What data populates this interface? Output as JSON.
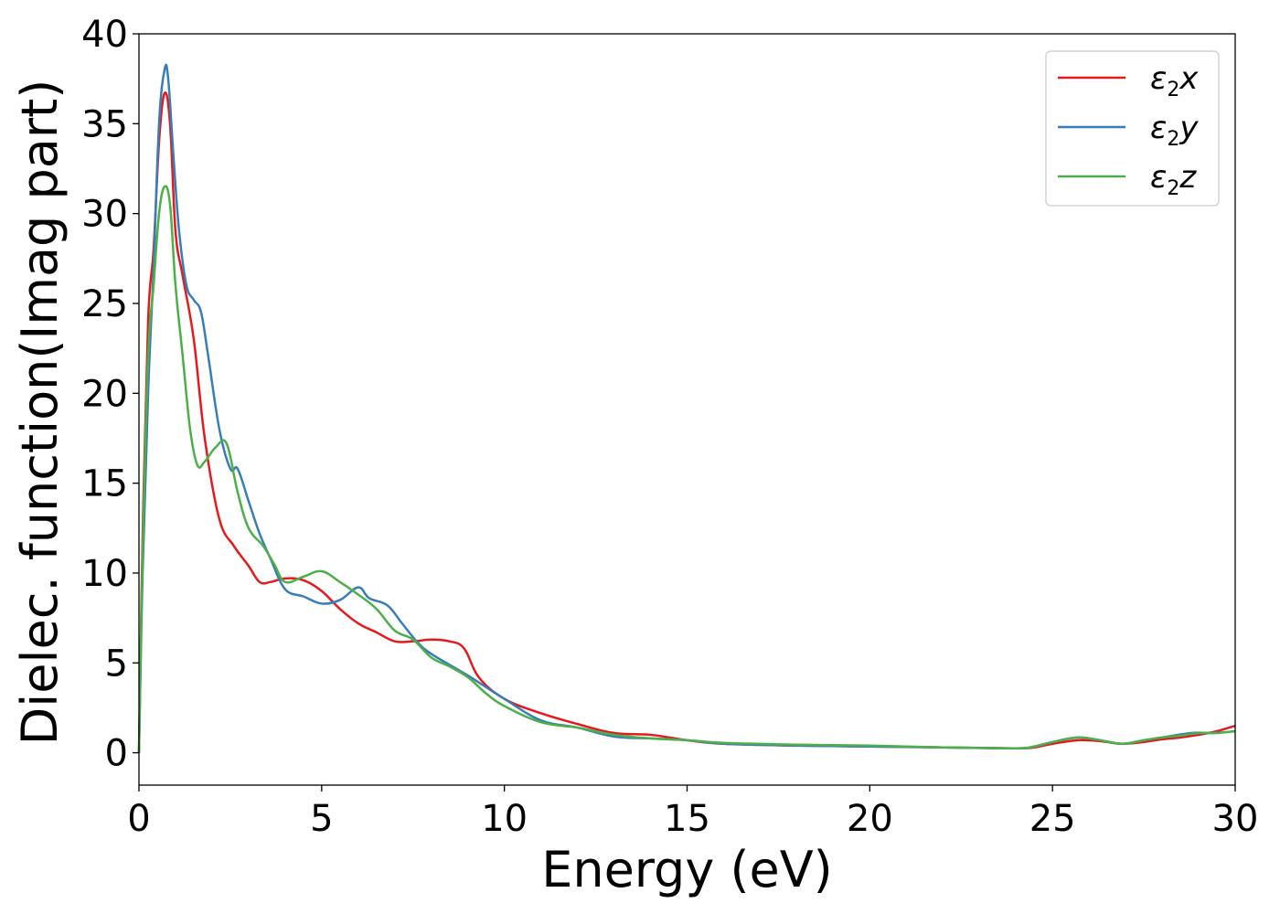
{
  "chart_data": {
    "type": "line",
    "xlabel": "Energy (eV)",
    "ylabel": "Dielec. function(Imag part)",
    "xlim": [
      0,
      30
    ],
    "ylim": [
      -1.8,
      40
    ],
    "xticks": [
      0,
      5,
      10,
      15,
      20,
      25,
      30
    ],
    "yticks": [
      0,
      5,
      10,
      15,
      20,
      25,
      30,
      35,
      40
    ],
    "grid": false,
    "legend_position": "top-right",
    "series": [
      {
        "name": "ε2x",
        "legend": {
          "base": "ε",
          "sub": "2",
          "suffix": "x"
        },
        "color": "#e41a1c",
        "x": [
          0,
          0.1,
          0.25,
          0.4,
          0.55,
          0.7,
          0.85,
          1.0,
          1.2,
          1.5,
          1.8,
          2.2,
          2.6,
          3.0,
          3.3,
          3.6,
          4.0,
          4.5,
          5.0,
          5.5,
          6.0,
          6.5,
          7.0,
          7.5,
          8.0,
          8.5,
          8.9,
          9.3,
          10.0,
          11.0,
          12.0,
          13.0,
          14.0,
          15.0,
          16.0,
          18.0,
          20.0,
          22.0,
          24.0,
          24.5,
          25.0,
          25.7,
          26.3,
          26.9,
          27.5,
          28.0,
          28.5,
          29.0,
          29.5,
          30.0
        ],
        "y": [
          0,
          12,
          24,
          28,
          34,
          36.7,
          35,
          29,
          26.5,
          23,
          17.5,
          13,
          11.5,
          10.4,
          9.5,
          9.5,
          9.7,
          9.6,
          9.0,
          8.0,
          7.2,
          6.7,
          6.2,
          6.2,
          6.3,
          6.2,
          5.8,
          4.2,
          3.0,
          2.2,
          1.6,
          1.1,
          1.0,
          0.7,
          0.5,
          0.4,
          0.35,
          0.3,
          0.25,
          0.3,
          0.5,
          0.7,
          0.65,
          0.5,
          0.6,
          0.75,
          0.85,
          1.0,
          1.2,
          1.5
        ]
      },
      {
        "name": "ε2y",
        "legend": {
          "base": "ε",
          "sub": "2",
          "suffix": "y"
        },
        "color": "#377eb8",
        "x": [
          0,
          0.1,
          0.25,
          0.4,
          0.55,
          0.7,
          0.8,
          0.95,
          1.1,
          1.3,
          1.5,
          1.7,
          1.9,
          2.2,
          2.5,
          2.7,
          3.0,
          3.3,
          3.6,
          4.0,
          4.5,
          5.0,
          5.5,
          6.0,
          6.3,
          6.8,
          7.2,
          7.6,
          8.0,
          9.0,
          10.0,
          11.0,
          12.0,
          13.0,
          14.0,
          15.0,
          16.0,
          18.0,
          20.0,
          22.0,
          24.0,
          24.5,
          25.0,
          25.7,
          26.3,
          26.9,
          27.5,
          28.0,
          28.8,
          29.4,
          30.0
        ],
        "y": [
          0,
          10,
          20,
          27,
          35,
          38,
          37.5,
          33,
          29,
          26,
          25.2,
          24.5,
          22,
          18,
          15.8,
          15.8,
          14,
          12.2,
          10.8,
          9.1,
          8.7,
          8.3,
          8.5,
          9.2,
          8.6,
          8.2,
          7.2,
          6.2,
          5.5,
          4.3,
          3.0,
          1.8,
          1.4,
          0.9,
          0.8,
          0.7,
          0.5,
          0.4,
          0.35,
          0.3,
          0.25,
          0.35,
          0.6,
          0.85,
          0.7,
          0.5,
          0.7,
          0.85,
          1.1,
          1.1,
          1.2
        ]
      },
      {
        "name": "ε2z",
        "legend": {
          "base": "ε",
          "sub": "2",
          "suffix": "z"
        },
        "color": "#4daf4a",
        "x": [
          0,
          0.1,
          0.25,
          0.4,
          0.55,
          0.7,
          0.85,
          1.0,
          1.2,
          1.4,
          1.6,
          1.8,
          2.1,
          2.4,
          2.7,
          3.0,
          3.4,
          3.7,
          4.0,
          4.5,
          5.0,
          5.5,
          6.0,
          6.5,
          7.0,
          7.5,
          8.0,
          8.5,
          9.0,
          9.5,
          10.0,
          11.0,
          12.0,
          13.0,
          14.0,
          15.0,
          16.0,
          18.0,
          20.0,
          22.0,
          24.0,
          24.5,
          25.0,
          25.7,
          26.3,
          26.9,
          27.5,
          28.0,
          28.5,
          29.0,
          29.5,
          30.0
        ],
        "y": [
          0,
          11,
          22,
          26,
          30,
          31.5,
          30.5,
          26,
          22,
          18,
          16,
          16.2,
          17,
          17.2,
          14.5,
          12.5,
          11.5,
          10.5,
          9.5,
          9.8,
          10.1,
          9.5,
          8.8,
          8.0,
          6.8,
          6.3,
          5.3,
          4.8,
          4.2,
          3.3,
          2.6,
          1.7,
          1.4,
          1.0,
          0.8,
          0.7,
          0.55,
          0.45,
          0.4,
          0.3,
          0.25,
          0.35,
          0.6,
          0.85,
          0.7,
          0.5,
          0.7,
          0.85,
          0.95,
          1.1,
          1.1,
          1.2
        ]
      }
    ]
  }
}
